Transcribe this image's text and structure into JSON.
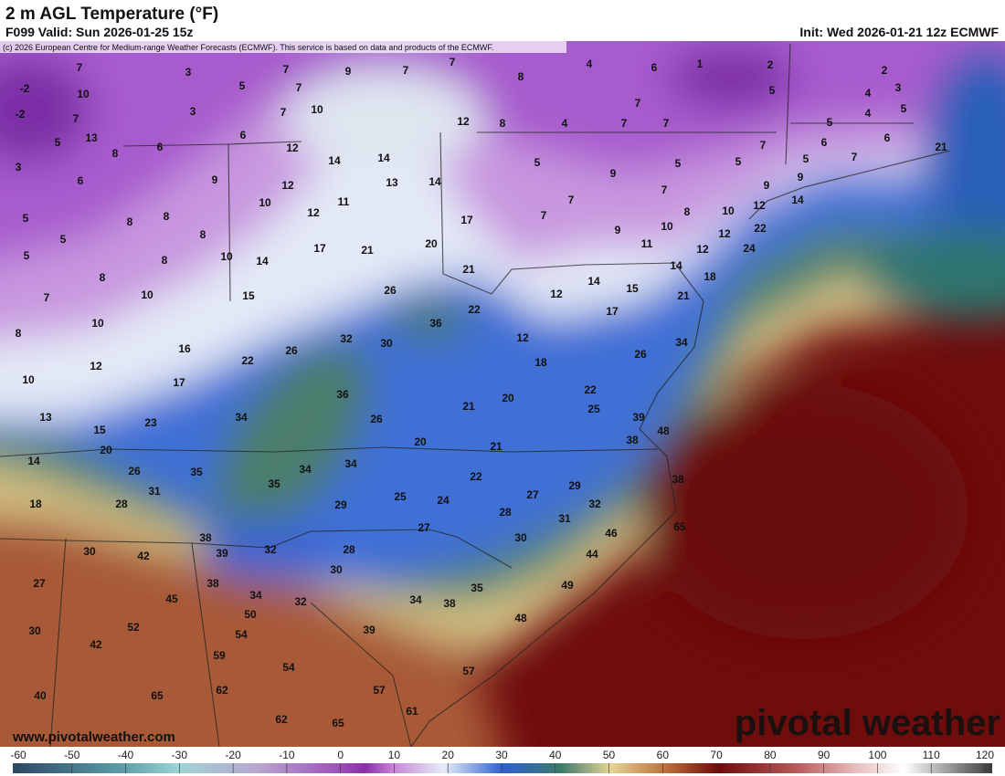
{
  "header": {
    "title": "2 m AGL Temperature (°F)",
    "valid": "F099 Valid: Sun 2026-01-25 15z",
    "init": "Init: Wed 2026-01-21 12z ECMWF",
    "copyright": "(c) 2026 European Centre for Medium-range Weather Forecasts (ECMWF). This service is based on data and products of the ECMWF."
  },
  "map": {
    "temperatures": [
      7,
      -2,
      10,
      -2,
      7,
      3,
      5,
      3,
      7,
      7,
      9,
      7,
      7,
      8,
      4,
      6,
      1,
      2,
      5,
      2,
      3,
      4,
      5,
      4,
      7,
      10,
      12,
      8,
      4,
      7,
      7,
      7,
      5,
      13,
      8,
      6,
      6,
      12,
      14,
      14,
      7,
      5,
      6,
      7,
      5,
      6,
      21,
      5,
      3,
      6,
      9,
      12,
      13,
      14,
      5,
      9,
      5,
      9,
      9,
      14,
      7,
      7,
      10,
      11,
      12,
      5,
      8,
      8,
      8,
      17,
      7,
      8,
      10,
      9,
      10,
      12,
      22,
      5,
      17,
      21,
      20,
      11,
      12,
      24,
      5,
      8,
      10,
      14,
      21,
      14,
      12,
      18,
      8,
      10,
      15,
      26,
      14,
      15,
      21,
      12,
      7,
      22,
      17,
      36,
      10,
      8,
      32,
      30,
      12,
      34,
      16,
      26,
      26,
      12,
      22,
      18,
      10,
      17,
      36,
      22,
      21,
      20,
      25,
      13,
      34,
      23,
      26,
      39,
      48,
      15,
      38,
      20,
      20,
      21,
      14,
      34,
      34,
      35,
      26,
      22,
      35,
      31,
      29,
      38,
      27,
      18,
      28,
      25,
      24,
      29,
      32,
      28,
      31,
      27,
      46,
      65,
      30,
      38,
      30,
      42,
      39,
      32,
      28,
      44,
      30,
      27,
      38,
      35,
      49,
      45,
      34,
      32,
      34,
      38,
      50,
      52,
      48,
      54,
      39,
      30,
      42,
      59,
      54,
      57,
      62,
      57,
      40,
      65,
      61,
      62,
      65
    ]
  },
  "colorbar": {
    "ticks": [
      -60,
      -50,
      -40,
      -30,
      -20,
      -10,
      0,
      10,
      20,
      30,
      40,
      50,
      60,
      70,
      80,
      90,
      100,
      110,
      120
    ]
  },
  "footer": {
    "url": "www.pivotalweather.com",
    "logo": "pivotal weather"
  }
}
